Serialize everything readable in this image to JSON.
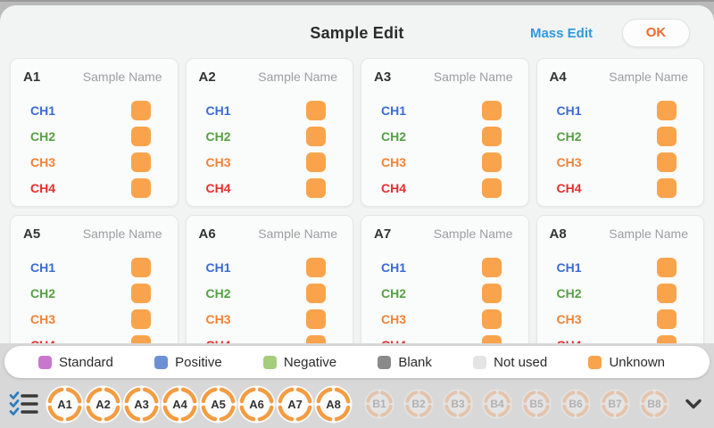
{
  "header": {
    "title": "Sample Edit",
    "mass_edit_label": "Mass Edit",
    "ok_label": "OK"
  },
  "plate": {
    "sample_name_placeholder": "Sample Name",
    "channels": [
      {
        "label": "CH1",
        "color": "#3a6bd4"
      },
      {
        "label": "CH2",
        "color": "#55a043"
      },
      {
        "label": "CH3",
        "color": "#f08336"
      },
      {
        "label": "CH4",
        "color": "#e62e2e"
      }
    ],
    "wells": [
      {
        "id": "A1"
      },
      {
        "id": "A2"
      },
      {
        "id": "A3"
      },
      {
        "id": "A4"
      },
      {
        "id": "A5"
      },
      {
        "id": "A6"
      },
      {
        "id": "A7"
      },
      {
        "id": "A8"
      }
    ],
    "default_state": "Unknown"
  },
  "legend": {
    "items": [
      {
        "label": "Standard",
        "color": "#c977cd"
      },
      {
        "label": "Positive",
        "color": "#6b90d3"
      },
      {
        "label": "Negative",
        "color": "#a5cb7d"
      },
      {
        "label": "Blank",
        "color": "#8a8a8a"
      },
      {
        "label": "Not used",
        "color": "#e4e4e4"
      },
      {
        "label": "Unknown",
        "color": "#f9a44c"
      }
    ]
  },
  "selector": {
    "a_buttons": [
      "A1",
      "A2",
      "A3",
      "A4",
      "A5",
      "A6",
      "A7",
      "A8"
    ],
    "b_buttons": [
      "B1",
      "B2",
      "B3",
      "B4",
      "B5",
      "B6",
      "B7",
      "B8"
    ]
  },
  "colors": {
    "state_unknown": "#f9a44c",
    "a_ring": "#f49c42",
    "b_ring": "#eeb183",
    "accent_blue": "#2d9ade",
    "accent_orange": "#f2692e"
  }
}
